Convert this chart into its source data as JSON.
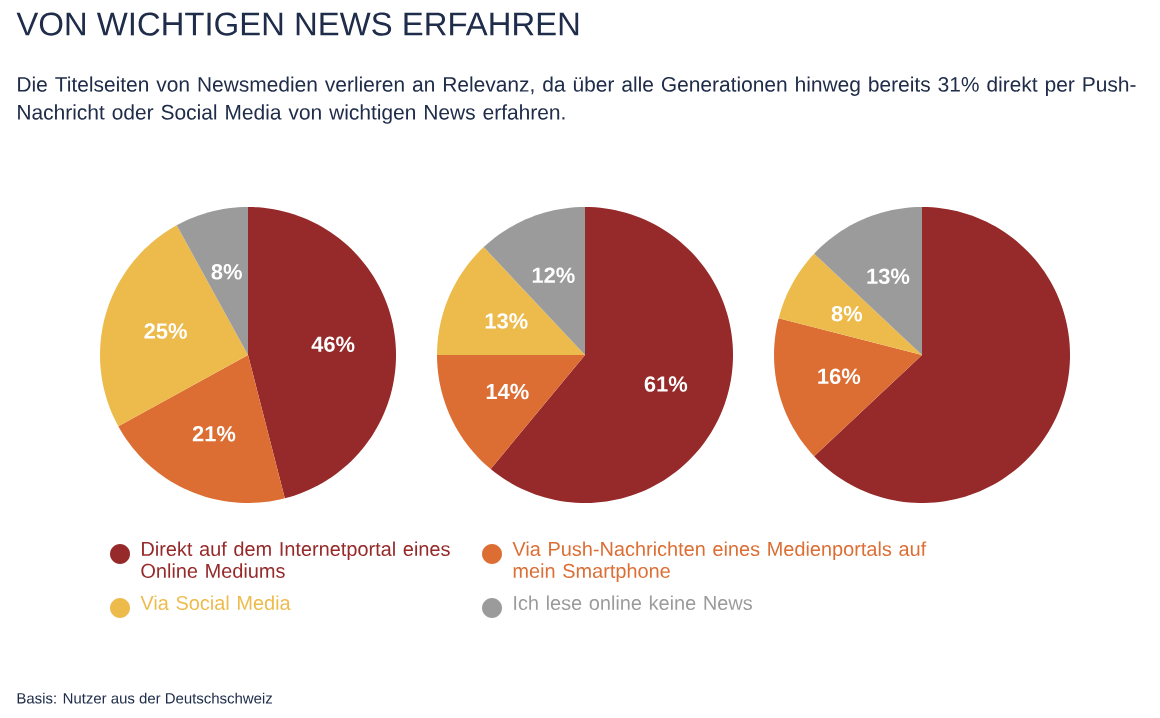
{
  "chart_data": [
    {
      "type": "pie",
      "title": "VON WICHTIGEN NEWS ERFAHREN",
      "subtitle": "Die Titelseiten von Newsmedien verlieren an Relevanz, da über alle Generationen hinweg bereits 31% direkt per Push-Nachricht oder Social Media von wichtigen News erfahren.",
      "annotations": [
        "Basis: Nutzer aus der Deutschschweiz"
      ],
      "legend": "bottom",
      "categories": [
        "Direkt auf dem Internetportal eines Online Mediums",
        "Via Push-Nachrichten eines Medienportals auf mein Smartphone",
        "Via Social Media",
        "Ich lese online keine News"
      ],
      "values": [
        46,
        21,
        25,
        8
      ],
      "value_labels": [
        "46%",
        "21%",
        "25%",
        "8%"
      ],
      "colors": [
        "#962a2a",
        "#dc6e34",
        "#edbb4c",
        "#9b9b9b"
      ]
    },
    {
      "type": "pie",
      "categories": [
        null,
        null,
        null,
        null
      ],
      "values": [
        61,
        14,
        13,
        12
      ],
      "value_labels": [
        "61%",
        "14%",
        "13%",
        "12%"
      ],
      "colors": [
        "#962a2a",
        "#dc6e34",
        "#edbb4c",
        "#9b9b9b"
      ]
    },
    {
      "type": "pie",
      "categories": [
        null,
        null,
        null,
        null
      ],
      "values": [
        63,
        16,
        8,
        13
      ],
      "value_labels": [
        null,
        "16%",
        "8%",
        "13%"
      ],
      "colors": [
        "#962a2a",
        "#dc6e34",
        "#edbb4c",
        "#9b9b9b"
      ]
    }
  ]
}
